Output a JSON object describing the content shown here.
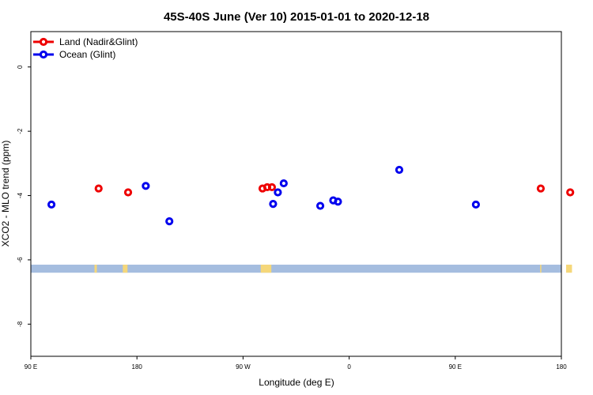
{
  "chart_data": {
    "type": "scatter",
    "title": "45S-40S June (Ver 10)   2015-01-01 to 2020-12-18",
    "xlabel": "Longitude (deg E)",
    "ylabel": "XCO2 - MLO trend (ppm)",
    "xlim": [
      90,
      540
    ],
    "ylim": [
      -9,
      1.1
    ],
    "x_ticks": [
      {
        "value": 90,
        "label": "90 E"
      },
      {
        "value": 180,
        "label": "180"
      },
      {
        "value": 270,
        "label": "90 W"
      },
      {
        "value": 360,
        "label": "0"
      },
      {
        "value": 450,
        "label": "90 E"
      },
      {
        "value": 540,
        "label": "180"
      }
    ],
    "y_ticks": [
      {
        "value": 0,
        "label": "0"
      },
      {
        "value": -2,
        "label": "-2"
      },
      {
        "value": -4,
        "label": "-4"
      },
      {
        "value": -6,
        "label": "-6"
      },
      {
        "value": -8,
        "label": "-8"
      }
    ],
    "legend": {
      "position": "top-left",
      "entries": [
        {
          "name": "Land (Nadir&Glint)",
          "color": "#ee0000"
        },
        {
          "name": "Ocean (Glint)",
          "color": "#0000ee"
        }
      ]
    },
    "series": [
      {
        "name": "Land (Nadir&Glint)",
        "color": "#ee0000",
        "points": [
          {
            "x": 147.5,
            "y": -3.78
          },
          {
            "x": 172.5,
            "y": -3.9
          },
          {
            "x": 286.5,
            "y": -3.78
          },
          {
            "x": 290.5,
            "y": -3.74
          },
          {
            "x": 294.5,
            "y": -3.74
          },
          {
            "x": 522.5,
            "y": -3.78
          },
          {
            "x": 547.5,
            "y": -3.9
          }
        ]
      },
      {
        "name": "Ocean (Glint)",
        "color": "#0000ee",
        "points": [
          {
            "x": 107.5,
            "y": -4.28
          },
          {
            "x": 187.5,
            "y": -3.7
          },
          {
            "x": 207.5,
            "y": -4.8
          },
          {
            "x": 295.5,
            "y": -4.26
          },
          {
            "x": 299.5,
            "y": -3.9
          },
          {
            "x": 304.5,
            "y": -3.62
          },
          {
            "x": 335.5,
            "y": -4.32
          },
          {
            "x": 346.5,
            "y": -4.15
          },
          {
            "x": 350.5,
            "y": -4.19
          },
          {
            "x": 402.5,
            "y": -3.2
          },
          {
            "x": 467.5,
            "y": -4.28
          }
        ]
      }
    ],
    "surface_strip": {
      "y_range": [
        -6.4,
        -6.15
      ],
      "ocean_color": "#a5bddf",
      "land_color": "#f5d77a",
      "land_segments": [
        [
          144,
          146
        ],
        [
          168,
          172
        ],
        [
          285,
          294
        ],
        [
          522,
          523
        ],
        [
          544,
          549
        ]
      ]
    }
  }
}
